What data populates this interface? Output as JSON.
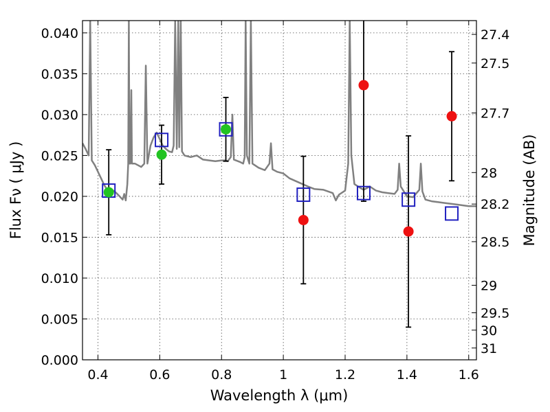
{
  "chart_data": {
    "type": "scatter",
    "xlabel": "Wavelength  λ (μm)",
    "ylabel_left": "Flux  Fν  ( μJy )",
    "ylabel_right": "Magnitude (AB)",
    "xlim": [
      0.35,
      1.625
    ],
    "ylim": [
      0.0,
      0.0415
    ],
    "grid": true,
    "x_ticks": [
      {
        "value": 0.4,
        "label": "0.4"
      },
      {
        "value": 0.6,
        "label": "0.6"
      },
      {
        "value": 0.8,
        "label": "0.8"
      },
      {
        "value": 1.0,
        "label": "1"
      },
      {
        "value": 1.2,
        "label": "1.2"
      },
      {
        "value": 1.4,
        "label": "1.4"
      },
      {
        "value": 1.6,
        "label": "1.6"
      }
    ],
    "y_ticks": [
      {
        "value": 0.0,
        "label": "0.000"
      },
      {
        "value": 0.005,
        "label": "0.005"
      },
      {
        "value": 0.01,
        "label": "0.010"
      },
      {
        "value": 0.015,
        "label": "0.015"
      },
      {
        "value": 0.02,
        "label": "0.020"
      },
      {
        "value": 0.025,
        "label": "0.025"
      },
      {
        "value": 0.03,
        "label": "0.030"
      },
      {
        "value": 0.035,
        "label": "0.035"
      },
      {
        "value": 0.04,
        "label": "0.040"
      }
    ],
    "mag_ticks": [
      {
        "value": 27.4,
        "label": "27.4"
      },
      {
        "value": 27.5,
        "label": "27.5"
      },
      {
        "value": 27.7,
        "label": "27.7"
      },
      {
        "value": 28.0,
        "label": "28"
      },
      {
        "value": 28.2,
        "label": "28.2"
      },
      {
        "value": 28.5,
        "label": "28.5"
      },
      {
        "value": 29.0,
        "label": "29"
      },
      {
        "value": 29.5,
        "label": "29.5"
      },
      {
        "value": 30.0,
        "label": "30"
      },
      {
        "value": 31.0,
        "label": "31"
      }
    ],
    "series": [
      {
        "marker": "circle",
        "color": "#22c322",
        "points": [
          {
            "x": 0.435,
            "y": 0.0205,
            "err": 0.0052
          },
          {
            "x": 0.606,
            "y": 0.0251,
            "err": 0.0036
          },
          {
            "x": 0.814,
            "y": 0.0282,
            "err": 0.0039
          }
        ]
      },
      {
        "marker": "circle",
        "color": "#ee1111",
        "points": [
          {
            "x": 1.065,
            "y": 0.0171,
            "err": 0.0078
          },
          {
            "x": 1.26,
            "y": 0.0336,
            "err": 0.0142
          },
          {
            "x": 1.405,
            "y": 0.0157,
            "err": 0.0117
          },
          {
            "x": 1.545,
            "y": 0.0298,
            "err": 0.0079
          }
        ]
      },
      {
        "marker": "open-square",
        "color": "#1f1fbf",
        "points": [
          {
            "x": 0.435,
            "y": 0.0207
          },
          {
            "x": 0.606,
            "y": 0.0269
          },
          {
            "x": 0.814,
            "y": 0.0282
          },
          {
            "x": 1.065,
            "y": 0.0202
          },
          {
            "x": 1.26,
            "y": 0.0204
          },
          {
            "x": 1.405,
            "y": 0.0196
          },
          {
            "x": 1.545,
            "y": 0.0179
          }
        ]
      },
      {
        "marker": "line",
        "color": "#808080",
        "points": [
          [
            0.35,
            0.0265
          ],
          [
            0.36,
            0.0258
          ],
          [
            0.37,
            0.025
          ],
          [
            0.375,
            0.0415
          ],
          [
            0.38,
            0.0244
          ],
          [
            0.39,
            0.0238
          ],
          [
            0.4,
            0.023
          ],
          [
            0.41,
            0.0222
          ],
          [
            0.42,
            0.0214
          ],
          [
            0.43,
            0.0208
          ],
          [
            0.44,
            0.0206
          ],
          [
            0.45,
            0.0207
          ],
          [
            0.46,
            0.0204
          ],
          [
            0.47,
            0.02
          ],
          [
            0.48,
            0.0196
          ],
          [
            0.485,
            0.0203
          ],
          [
            0.49,
            0.0195
          ],
          [
            0.495,
            0.0215
          ],
          [
            0.498,
            0.024
          ],
          [
            0.5,
            0.0415
          ],
          [
            0.502,
            0.024
          ],
          [
            0.505,
            0.024
          ],
          [
            0.508,
            0.033
          ],
          [
            0.51,
            0.024
          ],
          [
            0.52,
            0.024
          ],
          [
            0.53,
            0.0238
          ],
          [
            0.54,
            0.0236
          ],
          [
            0.55,
            0.024
          ],
          [
            0.555,
            0.036
          ],
          [
            0.56,
            0.024
          ],
          [
            0.57,
            0.0262
          ],
          [
            0.58,
            0.0272
          ],
          [
            0.59,
            0.0278
          ],
          [
            0.6,
            0.027
          ],
          [
            0.61,
            0.0262
          ],
          [
            0.62,
            0.0258
          ],
          [
            0.63,
            0.0255
          ],
          [
            0.64,
            0.0254
          ],
          [
            0.645,
            0.0262
          ],
          [
            0.65,
            0.0415
          ],
          [
            0.655,
            0.0258
          ],
          [
            0.66,
            0.0415
          ],
          [
            0.663,
            0.026
          ],
          [
            0.668,
            0.0415
          ],
          [
            0.672,
            0.0255
          ],
          [
            0.68,
            0.025
          ],
          [
            0.7,
            0.0248
          ],
          [
            0.72,
            0.025
          ],
          [
            0.74,
            0.0245
          ],
          [
            0.76,
            0.0244
          ],
          [
            0.78,
            0.0243
          ],
          [
            0.8,
            0.0244
          ],
          [
            0.81,
            0.0244
          ],
          [
            0.82,
            0.0243
          ],
          [
            0.83,
            0.0248
          ],
          [
            0.835,
            0.03
          ],
          [
            0.84,
            0.0245
          ],
          [
            0.86,
            0.0242
          ],
          [
            0.87,
            0.024
          ],
          [
            0.875,
            0.0248
          ],
          [
            0.878,
            0.0415
          ],
          [
            0.882,
            0.025
          ],
          [
            0.89,
            0.024
          ],
          [
            0.895,
            0.0415
          ],
          [
            0.9,
            0.024
          ],
          [
            0.92,
            0.0235
          ],
          [
            0.94,
            0.0232
          ],
          [
            0.955,
            0.024
          ],
          [
            0.96,
            0.0265
          ],
          [
            0.965,
            0.0233
          ],
          [
            0.98,
            0.023
          ],
          [
            1.0,
            0.0228
          ],
          [
            1.02,
            0.0222
          ],
          [
            1.05,
            0.0217
          ],
          [
            1.08,
            0.0212
          ],
          [
            1.1,
            0.0209
          ],
          [
            1.13,
            0.0208
          ],
          [
            1.16,
            0.0204
          ],
          [
            1.17,
            0.0195
          ],
          [
            1.18,
            0.0202
          ],
          [
            1.2,
            0.0207
          ],
          [
            1.21,
            0.024
          ],
          [
            1.215,
            0.0415
          ],
          [
            1.22,
            0.025
          ],
          [
            1.23,
            0.0215
          ],
          [
            1.25,
            0.021
          ],
          [
            1.26,
            0.0208
          ],
          [
            1.28,
            0.0212
          ],
          [
            1.3,
            0.0207
          ],
          [
            1.32,
            0.0205
          ],
          [
            1.34,
            0.0204
          ],
          [
            1.36,
            0.0203
          ],
          [
            1.37,
            0.0208
          ],
          [
            1.375,
            0.024
          ],
          [
            1.38,
            0.0212
          ],
          [
            1.4,
            0.02
          ],
          [
            1.42,
            0.0199
          ],
          [
            1.44,
            0.0208
          ],
          [
            1.445,
            0.024
          ],
          [
            1.45,
            0.0206
          ],
          [
            1.46,
            0.0196
          ],
          [
            1.48,
            0.0194
          ],
          [
            1.5,
            0.0193
          ],
          [
            1.52,
            0.0192
          ],
          [
            1.54,
            0.0191
          ],
          [
            1.56,
            0.019
          ],
          [
            1.58,
            0.0189
          ],
          [
            1.6,
            0.0188
          ],
          [
            1.625,
            0.0188
          ]
        ]
      }
    ]
  }
}
